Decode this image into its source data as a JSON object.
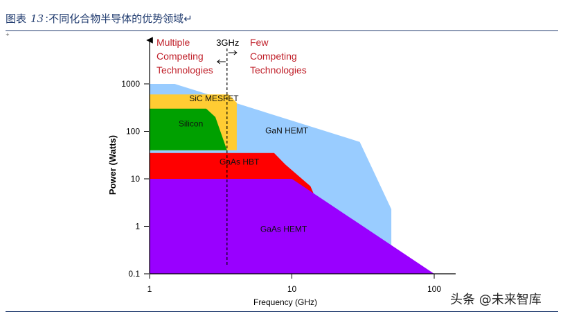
{
  "page": {
    "title_prefix": "图表",
    "title_number": "13",
    "title_separator": ":",
    "title_text": "不同化合物半导体的优势领域",
    "title_end_mark": "↵",
    "corner_mark": "+",
    "watermark": "头条 @未来智库"
  },
  "chart_data": {
    "type": "area",
    "title": "",
    "xlabel": "Frequency (GHz)",
    "ylabel": "Power (Watts)",
    "x_scale": "log",
    "y_scale": "log",
    "xlim": [
      1,
      100
    ],
    "ylim": [
      0.1,
      1000
    ],
    "x_ticks": [
      1,
      10,
      100
    ],
    "x_tick_labels": [
      "1",
      "10",
      "100"
    ],
    "y_ticks": [
      0.1,
      1,
      10,
      100,
      1000
    ],
    "y_tick_labels": [
      "0.1",
      "1",
      "10",
      "100",
      "1000"
    ],
    "grid": false,
    "legend": "none",
    "regions": [
      {
        "name": "GaN HEMT",
        "color": "#99ccff",
        "polygon": [
          [
            1,
            1000
          ],
          [
            1.5,
            1000
          ],
          [
            30,
            60
          ],
          [
            50,
            2.3
          ],
          [
            50,
            0.1
          ],
          [
            1,
            0.1
          ]
        ],
        "label_at": [
          6.5,
          100
        ]
      },
      {
        "name": "SiC MESFET",
        "color": "#ffcc33",
        "polygon": [
          [
            1,
            600
          ],
          [
            3.6,
            600
          ],
          [
            4.1,
            400
          ],
          [
            4.1,
            40
          ],
          [
            1,
            40
          ]
        ],
        "label_at": [
          1.9,
          480
        ]
      },
      {
        "name": "Silicon",
        "color": "#00a000",
        "polygon": [
          [
            1,
            300
          ],
          [
            2.5,
            300
          ],
          [
            2.9,
            200
          ],
          [
            3.5,
            40
          ],
          [
            1,
            40
          ]
        ],
        "label_at": [
          1.6,
          140
        ]
      },
      {
        "name": "GaAs HBT",
        "color": "#ff0000",
        "polygon": [
          [
            1,
            35
          ],
          [
            7.5,
            35
          ],
          [
            9,
            20
          ],
          [
            13.5,
            7
          ],
          [
            15.5,
            2.7
          ],
          [
            1,
            2.7
          ]
        ],
        "label_at": [
          3.1,
          22
        ]
      },
      {
        "name": "GaAs HEMT",
        "color": "#9900ff",
        "polygon": [
          [
            1,
            10
          ],
          [
            10,
            10
          ],
          [
            100,
            0.1
          ],
          [
            1,
            0.1
          ]
        ],
        "label_at": [
          6,
          0.85
        ]
      }
    ],
    "annotations": [
      {
        "text": "3GHz",
        "x": 3.5,
        "kind": "vertical-dashed-line"
      },
      {
        "text": "Multiple",
        "side": "left",
        "line": 1
      },
      {
        "text": "Competing",
        "side": "left",
        "line": 2
      },
      {
        "text": "Technologies",
        "side": "left",
        "line": 3
      },
      {
        "text": "Few",
        "side": "right",
        "line": 1
      },
      {
        "text": "Competing",
        "side": "right",
        "line": 2
      },
      {
        "text": "Technologies",
        "side": "right",
        "line": 3
      }
    ],
    "annotation_color": "#c0202a"
  }
}
